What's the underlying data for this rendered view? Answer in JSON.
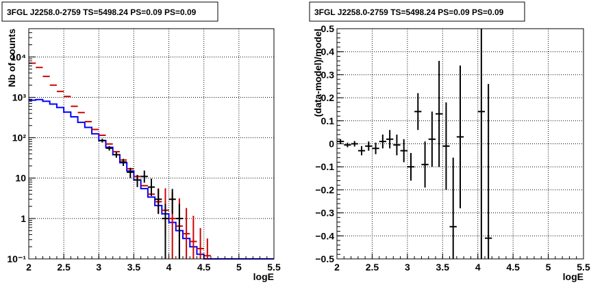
{
  "chart_data": [
    {
      "type": "line",
      "title": "3FGL J2258.0-2759 TS=5498.24 PS=0.09 PS=0.09",
      "xlabel": "logE",
      "ylabel": "Nb of counts",
      "xlim": [
        2,
        5.5
      ],
      "ylim": [
        0.1,
        50000
      ],
      "yscale": "log",
      "grid": true,
      "x_ticks": [
        2,
        2.5,
        3,
        3.5,
        4,
        4.5,
        5,
        5.5
      ],
      "x_tick_labels": [
        "2",
        "2.5",
        "3",
        "3.5",
        "4",
        "4.5",
        "5",
        "5.5"
      ],
      "y_ticks": [
        0.1,
        1,
        10,
        100,
        1000,
        10000
      ],
      "y_tick_labels": [
        "10⁻¹",
        "1",
        "10",
        "10²",
        "10³",
        "10⁴"
      ],
      "bin_width": 0.1,
      "series": [
        {
          "color": "#0000ff",
          "style": "step",
          "x": [
            2.05,
            2.15,
            2.25,
            2.35,
            2.45,
            2.55,
            2.65,
            2.75,
            2.85,
            2.95,
            3.05,
            3.15,
            3.25,
            3.35,
            3.45,
            3.55,
            3.65,
            3.75,
            3.85,
            3.95,
            4.05,
            4.15,
            4.25,
            4.35,
            4.45,
            4.55,
            4.65,
            4.75,
            4.85,
            4.95,
            5.05,
            5.15,
            5.25,
            5.35,
            5.45
          ],
          "values": [
            850,
            880,
            800,
            680,
            560,
            430,
            330,
            240,
            180,
            125,
            85,
            58,
            38,
            24,
            15,
            9,
            5.5,
            3.4,
            2.1,
            1.3,
            0.8,
            0.5,
            0.32,
            0.2,
            0.13,
            0.1,
            0.1,
            0.1,
            0.1,
            0.1,
            0.1,
            0.1,
            0.1,
            0.1,
            0.1
          ]
        },
        {
          "color": "#cc0000",
          "style": "errorbar",
          "x": [
            2.05,
            2.15,
            2.25,
            2.35,
            2.45,
            2.55,
            2.65,
            2.75,
            2.85,
            2.95,
            3.05,
            3.15,
            3.25,
            3.35,
            3.45,
            3.55,
            3.65,
            3.75,
            3.85,
            3.95,
            4.05,
            4.15,
            4.25,
            4.35,
            4.45,
            4.55
          ],
          "values": [
            7000,
            5500,
            3300,
            2000,
            1400,
            1050,
            600,
            420,
            250,
            160,
            115,
            70,
            45,
            28,
            17,
            11,
            6.5,
            4,
            2.6,
            1.6,
            1,
            0.65,
            0.42,
            0.27,
            0.18,
            0.12
          ],
          "errors_low": [
            0,
            0,
            0,
            0,
            0,
            0,
            0,
            0,
            0,
            0,
            0,
            0,
            0,
            0,
            0,
            0,
            0,
            0,
            1.3,
            1.2,
            0.9,
            0.6,
            0.4,
            0.26,
            0.17,
            0.11
          ],
          "errors_high": [
            0,
            0,
            0,
            0,
            0,
            0,
            0,
            0,
            0,
            0,
            0,
            0,
            0,
            0,
            0,
            0,
            0,
            0,
            3,
            4,
            3.5,
            2.5,
            1.4,
            0.9,
            0.4,
            0.2
          ]
        },
        {
          "color": "#000000",
          "style": "errorbar",
          "x": [
            3.05,
            3.15,
            3.25,
            3.35,
            3.45,
            3.55,
            3.65,
            3.75,
            3.85,
            3.95,
            4.05,
            4.15
          ],
          "values": [
            85,
            55,
            38,
            25,
            14,
            9,
            11,
            6,
            3,
            1,
            3,
            1
          ],
          "errors_low": [
            9,
            7,
            6,
            5,
            4,
            3,
            3.3,
            2.4,
            1.7,
            0.99,
            1.7,
            0.99
          ],
          "errors_high": [
            9,
            7,
            6,
            5,
            4,
            3,
            4.4,
            3.7,
            2.4,
            1.3,
            2.4,
            1.3
          ]
        }
      ]
    },
    {
      "type": "scatter",
      "title": "3FGL J2258.0-2759 TS=5498.24 PS=0.09 PS=0.09",
      "xlabel": "logE",
      "ylabel": "(data-model)/model",
      "xlim": [
        2,
        5.5
      ],
      "ylim": [
        -0.5,
        0.5
      ],
      "grid": true,
      "x_ticks": [
        2,
        2.5,
        3,
        3.5,
        4,
        4.5,
        5,
        5.5
      ],
      "x_tick_labels": [
        "2",
        "2.5",
        "3",
        "3.5",
        "4",
        "4.5",
        "5",
        "5.5"
      ],
      "y_ticks": [
        -0.5,
        -0.4,
        -0.3,
        -0.2,
        -0.1,
        0,
        0.1,
        0.2,
        0.3,
        0.4,
        0.5
      ],
      "y_tick_labels": [
        "−0.5",
        "−0.4",
        "−0.3",
        "−0.2",
        "−0.1",
        "0",
        "0.1",
        "0.2",
        "0.3",
        "0.4",
        "0.5"
      ],
      "bin_width": 0.1,
      "series": [
        {
          "color": "#000000",
          "style": "errorbar",
          "x": [
            2.05,
            2.15,
            2.25,
            2.35,
            2.45,
            2.55,
            2.65,
            2.75,
            2.85,
            2.95,
            3.05,
            3.15,
            3.25,
            3.35,
            3.45,
            3.55,
            3.65,
            3.75,
            4.05,
            4.15
          ],
          "values": [
            0.01,
            -0.005,
            0.0,
            -0.03,
            -0.01,
            -0.02,
            0.01,
            0.02,
            -0.005,
            -0.03,
            -0.1,
            0.14,
            -0.09,
            0.02,
            0.13,
            -0.01,
            -0.36,
            0.03,
            0.14,
            -0.41
          ],
          "errors": [
            0.01,
            0.01,
            0.012,
            0.02,
            0.02,
            0.025,
            0.03,
            0.04,
            0.045,
            0.05,
            0.06,
            0.08,
            0.1,
            0.12,
            0.23,
            0.19,
            0.3,
            0.31,
            0.64,
            0.67
          ]
        }
      ]
    }
  ]
}
